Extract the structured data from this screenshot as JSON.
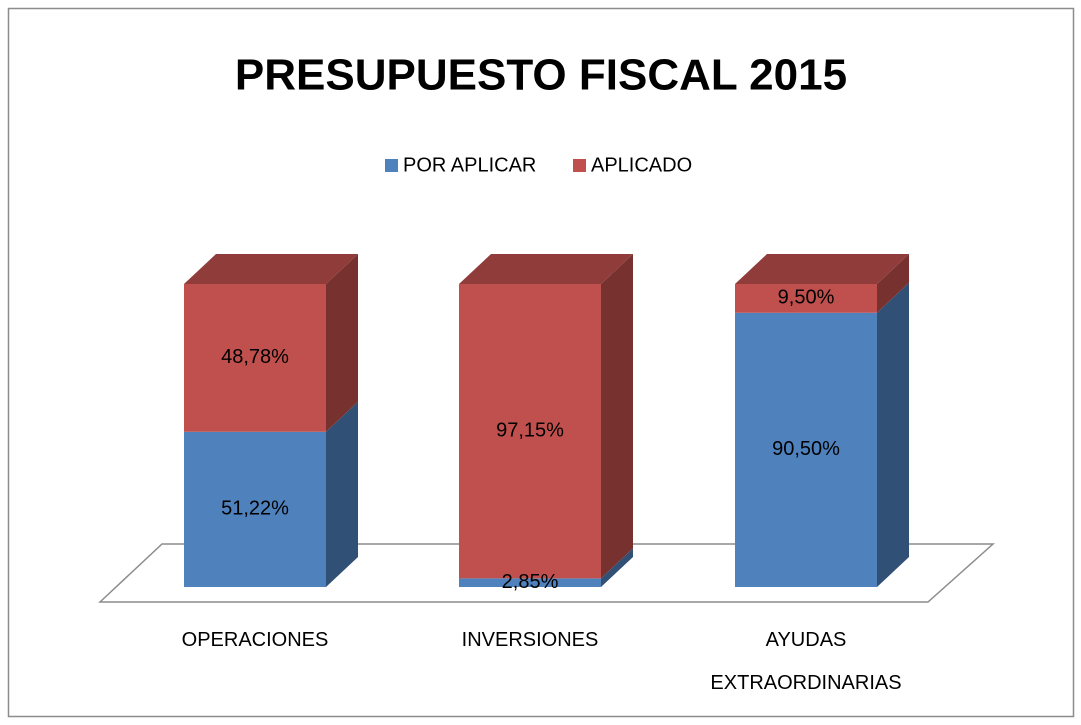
{
  "chart_data": {
    "type": "bar",
    "stacked": true,
    "three_d": true,
    "title": "PRESUPUESTO FISCAL 2015",
    "categories": [
      "OPERACIONES",
      "INVERSIONES",
      "AYUDAS EXTRAORDINARIAS"
    ],
    "series": [
      {
        "name": "POR APLICAR",
        "color": "#4f81bd",
        "values": [
          51.22,
          2.85,
          90.5
        ],
        "value_labels": [
          "51,22%",
          "2,85%",
          "90,50%"
        ]
      },
      {
        "name": "APLICADO",
        "color": "#c0504d",
        "values": [
          48.78,
          97.15,
          9.5
        ],
        "value_labels": [
          "48,78%",
          "97,15%",
          "9,50%"
        ]
      }
    ],
    "legend": "top"
  }
}
